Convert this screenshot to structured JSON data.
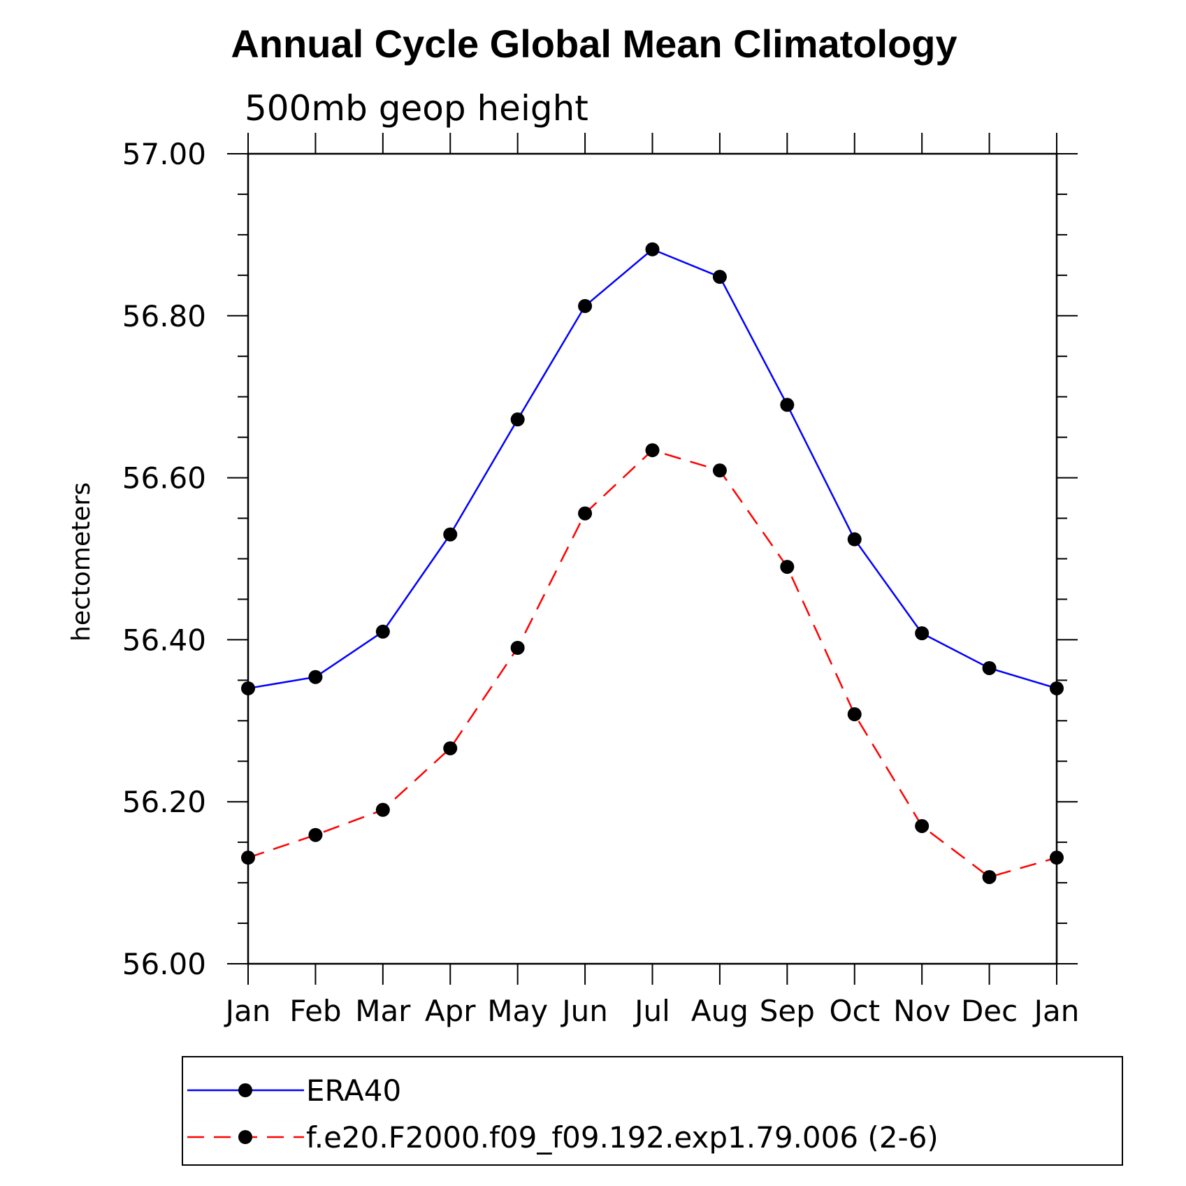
{
  "chart_data": {
    "type": "line",
    "title": "Annual Cycle Global Mean Climatology",
    "subtitle": "500mb geop height",
    "xlabel": "",
    "ylabel": "hectometers",
    "categories": [
      "Jan",
      "Feb",
      "Mar",
      "Apr",
      "May",
      "Jun",
      "Jul",
      "Aug",
      "Sep",
      "Oct",
      "Nov",
      "Dec",
      "Jan"
    ],
    "ylim": [
      56.0,
      57.0
    ],
    "yticks": [
      "56.00",
      "56.20",
      "56.40",
      "56.60",
      "56.80",
      "57.00"
    ],
    "grid": false,
    "legend_position": "bottom",
    "series": [
      {
        "name": "ERA40",
        "color": "#0000ff",
        "dash": "solid",
        "marker": "filled-circle",
        "values": [
          56.34,
          56.354,
          56.41,
          56.53,
          56.672,
          56.812,
          56.882,
          56.848,
          56.69,
          56.524,
          56.408,
          56.365,
          56.34
        ]
      },
      {
        "name": "f.e20.F2000.f09_f09.192.exp1.79.006 (2-6)",
        "color": "#ff0000",
        "dash": "dashed",
        "marker": "filled-circle",
        "values": [
          56.131,
          56.159,
          56.19,
          56.266,
          56.39,
          56.556,
          56.634,
          56.609,
          56.49,
          56.308,
          56.17,
          56.107,
          56.131
        ]
      }
    ]
  }
}
